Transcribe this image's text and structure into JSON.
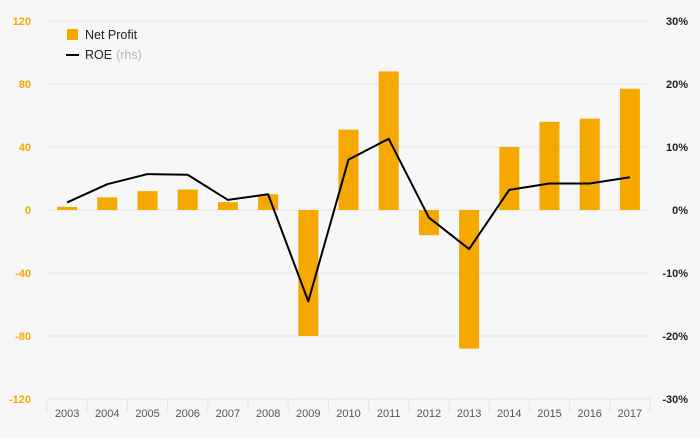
{
  "chart_data": {
    "type": "bar",
    "categories": [
      "2003",
      "2004",
      "2005",
      "2006",
      "2007",
      "2008",
      "2009",
      "2010",
      "2011",
      "2012",
      "2013",
      "2014",
      "2015",
      "2016",
      "2017"
    ],
    "series": [
      {
        "name": "Net Profit",
        "type": "bar",
        "axis": "left",
        "values": [
          2,
          8,
          12,
          13,
          5,
          10,
          -80,
          51,
          88,
          -16,
          -88,
          40,
          56,
          58,
          77
        ]
      },
      {
        "name": "ROE",
        "legend_note": "(rhs)",
        "type": "line",
        "axis": "right",
        "values": [
          1.2,
          4.1,
          5.7,
          5.6,
          1.6,
          2.5,
          -14.5,
          8.0,
          11.3,
          -1.2,
          -6.2,
          3.2,
          4.2,
          4.2,
          5.2
        ]
      }
    ],
    "y_left": {
      "ylim": [
        -120,
        120
      ],
      "ticks": [
        120,
        80,
        40,
        0,
        -40,
        -80,
        -120
      ],
      "tick_labels": [
        "120",
        "80",
        "40",
        "0",
        "-40",
        "-80",
        "-120"
      ]
    },
    "y_right": {
      "ylim": [
        -30,
        30
      ],
      "ticks": [
        30,
        20,
        10,
        0,
        -10,
        -20,
        -30
      ],
      "tick_labels": [
        "30%",
        "20%",
        "10%",
        "0%",
        "-10%",
        "-20%",
        "-30%"
      ]
    },
    "title": "",
    "xlabel": "",
    "ylabel": "",
    "grid": true,
    "legend_position": "top-left",
    "colors": {
      "bar": "#f5a800",
      "line": "#000000",
      "grid": "#e6e6e6",
      "background": "#f7f7f7"
    }
  }
}
